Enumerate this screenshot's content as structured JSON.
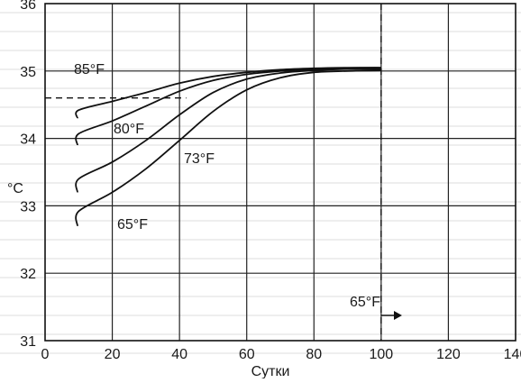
{
  "chart_data": {
    "type": "line",
    "xlabel": "Сутки",
    "ylabel": "°C",
    "xlim": [
      0,
      140
    ],
    "ylim": [
      31,
      36
    ],
    "x_ticks": [
      0,
      20,
      40,
      60,
      80,
      100,
      120,
      140
    ],
    "y_ticks": [
      31,
      32,
      33,
      34,
      35,
      36
    ],
    "grid": true,
    "series": [
      {
        "name": "85°F",
        "x": [
          0,
          10,
          20,
          30,
          40,
          50,
          60,
          70,
          80,
          90,
          100
        ],
        "y": [
          34.3,
          34.42,
          34.55,
          34.68,
          34.82,
          34.92,
          34.98,
          35.02,
          35.04,
          35.05,
          35.05
        ]
      },
      {
        "name": "80°F",
        "x": [
          0,
          10,
          20,
          30,
          40,
          50,
          60,
          70,
          80,
          90,
          100
        ],
        "y": [
          33.9,
          34.07,
          34.26,
          34.48,
          34.7,
          34.86,
          34.95,
          35.0,
          35.02,
          35.04,
          35.05
        ]
      },
      {
        "name": "73°F",
        "x": [
          0,
          10,
          20,
          30,
          40,
          50,
          60,
          70,
          80,
          90,
          100
        ],
        "y": [
          33.2,
          33.4,
          33.65,
          33.97,
          34.35,
          34.68,
          34.88,
          34.97,
          35.01,
          35.03,
          35.03
        ]
      },
      {
        "name": "65°F",
        "x": [
          0,
          10,
          20,
          30,
          40,
          50,
          60,
          70,
          80,
          90,
          100
        ],
        "y": [
          32.7,
          32.92,
          33.2,
          33.55,
          33.97,
          34.4,
          34.72,
          34.9,
          34.98,
          35.0,
          35.01
        ]
      }
    ],
    "reference_lines": {
      "horizontal_dashed_y": 34.6,
      "vertical_dashed_x": 100
    },
    "annotations": [
      {
        "text": "65°F",
        "arrow": "right"
      }
    ]
  }
}
